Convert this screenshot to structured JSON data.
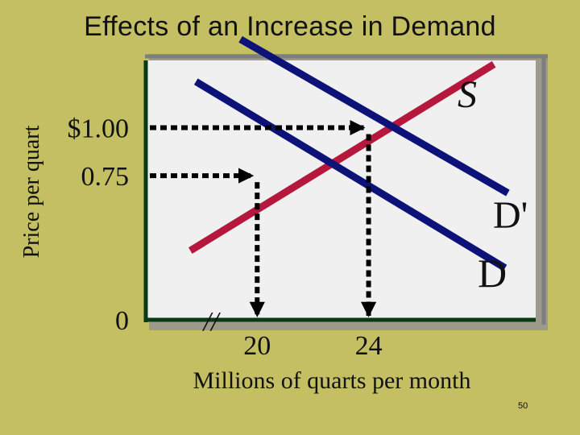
{
  "slide": {
    "title": "Effects of an Increase in Demand",
    "page_number": "50"
  },
  "chart_data": {
    "type": "line",
    "title": "Effects of an Increase in Demand",
    "xlabel": "Millions of quarts per month",
    "ylabel": "Price per quart",
    "y_ticks": [
      {
        "value": 1.0,
        "label": "$1.00"
      },
      {
        "value": 0.75,
        "label": "0.75"
      },
      {
        "value": 0,
        "label": "0"
      }
    ],
    "x_ticks": [
      {
        "value": 20,
        "label": "20"
      },
      {
        "value": 24,
        "label": "24"
      }
    ],
    "axis_break_label": "//",
    "xlim": [
      16,
      30
    ],
    "ylim": [
      0,
      1.35
    ],
    "series": [
      {
        "name": "S",
        "color": "#b5173d",
        "points": [
          [
            17.6,
            0.36
          ],
          [
            28.5,
            1.33
          ]
        ]
      },
      {
        "name": "D",
        "color": "#0d1278",
        "points": [
          [
            17.8,
            1.24
          ],
          [
            28.9,
            0.27
          ]
        ]
      },
      {
        "name": "D'",
        "color": "#0d1278",
        "points": [
          [
            19.4,
            1.46
          ],
          [
            29.0,
            0.66
          ]
        ]
      }
    ],
    "equilibria": [
      {
        "x": 20,
        "y": 0.75,
        "from": "D"
      },
      {
        "x": 24,
        "y": 1.0,
        "from": "D'"
      }
    ],
    "guide_color": "#000000",
    "plot_background": "#f0f0f0",
    "grid": false
  }
}
